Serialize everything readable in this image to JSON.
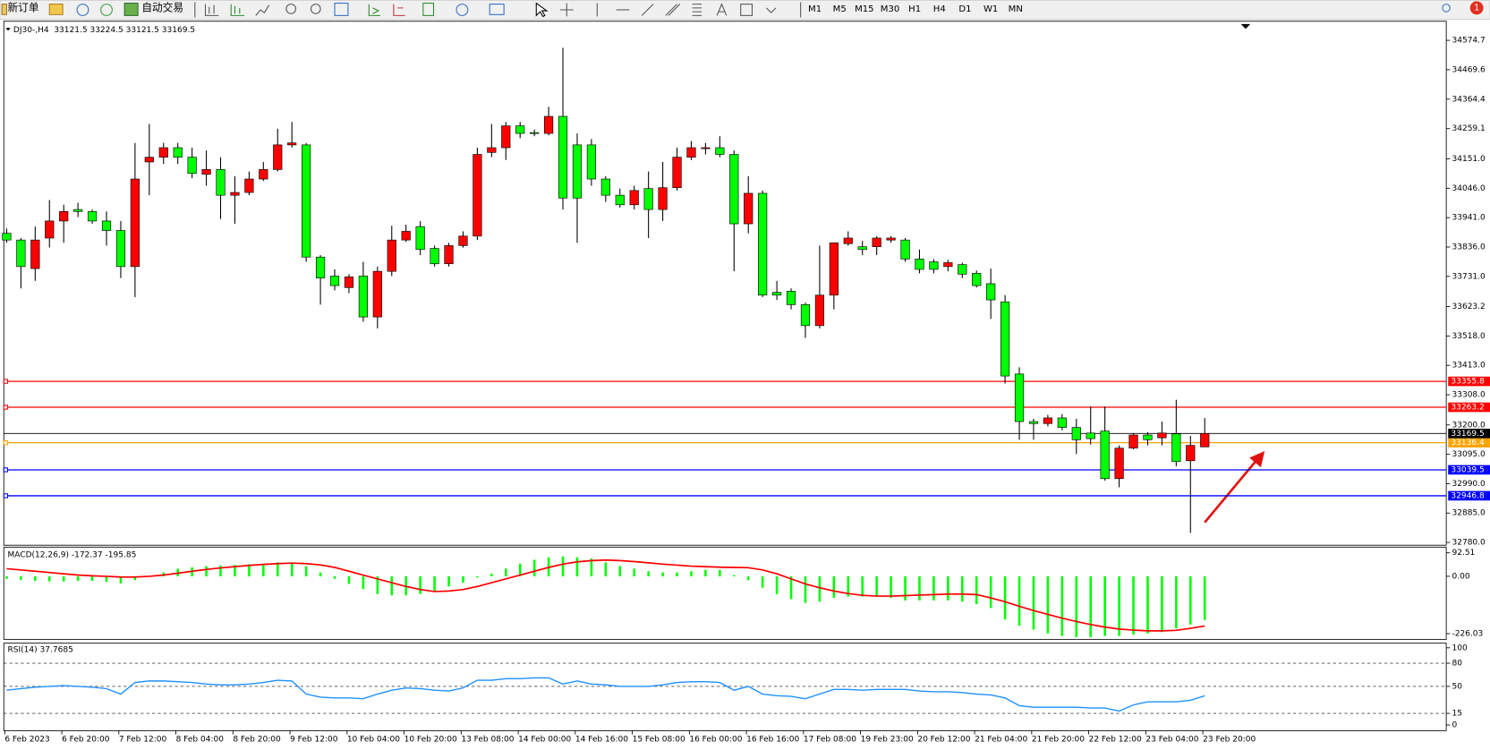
{
  "toolbar": {
    "new_order": "新订单",
    "auto_trading": "自动交易",
    "timeframes": [
      "M1",
      "M5",
      "M15",
      "M30",
      "H1",
      "H4",
      "D1",
      "W1",
      "MN"
    ],
    "notification": "1"
  },
  "chart_data": [
    {
      "type": "candlestick",
      "title": "DJ30-,H4  33121.5 33224.5 33121.5 33169.5",
      "categories": [
        "6 Feb 2023",
        null,
        null,
        null,
        "6 Feb 20:00",
        null,
        null,
        null,
        "7 Feb 12:00",
        null,
        null,
        null,
        "8 Feb 04:00",
        null,
        null,
        null,
        "8 Feb 20:00",
        null,
        null,
        null,
        "9 Feb 12:00",
        null,
        null,
        null,
        "10 Feb 04:00",
        null,
        null,
        null,
        "10 Feb 20:00",
        null,
        null,
        null,
        "13 Feb 08:00",
        null,
        null,
        null,
        "14 Feb 00:00",
        null,
        null,
        null,
        "14 Feb 16:00",
        null,
        null,
        null,
        "15 Feb 08:00",
        null,
        null,
        null,
        "16 Feb 00:00",
        null,
        null,
        null,
        "16 Feb 16:00",
        null,
        null,
        null,
        "17 Feb 08:00",
        null,
        null,
        null,
        "19 Feb 23:00",
        null,
        null,
        null,
        "20 Feb 12:00",
        null,
        null,
        null,
        "21 Feb 04:00",
        null,
        null,
        null,
        "21 Feb 20:00",
        null,
        null,
        null,
        "22 Feb 12:00",
        null,
        null,
        null,
        "23 Feb 04:00",
        null,
        null,
        null,
        "23 Feb 20:00"
      ],
      "open": [
        33885,
        33861,
        33759,
        33868,
        33929,
        33970,
        33963,
        33929,
        33895,
        33766,
        34140,
        34157,
        34191,
        34157,
        34096,
        34113,
        34021,
        34031,
        34079,
        34113,
        34201,
        34201,
        33800,
        33732,
        33691,
        33732,
        33586,
        33749,
        33861,
        33909,
        33831,
        33776,
        33841,
        33875,
        34174,
        34191,
        34269,
        34245,
        34242,
        34303,
        34201,
        34201,
        34079,
        34021,
        33987,
        34045,
        33970,
        34048,
        34157,
        34188,
        34191,
        34167,
        33919,
        34028,
        33674,
        33678,
        33630,
        33555,
        33664,
        33848,
        33837,
        33837,
        33861,
        33861,
        33793,
        33783,
        33766,
        33773,
        33742,
        33705,
        33640,
        33382,
        33212,
        33205,
        33225,
        33191,
        33171,
        33178,
        33008,
        33117,
        33164,
        33154,
        33168,
        33072,
        33121.5
      ],
      "high": [
        33902,
        33868,
        33909,
        34004,
        33987,
        33994,
        33970,
        33963,
        33929,
        34208,
        34276,
        34208,
        34208,
        34191,
        34181,
        34157,
        34089,
        34106,
        34140,
        34259,
        34283,
        34208,
        33807,
        33756,
        33739,
        33783,
        33766,
        33912,
        33916,
        33929,
        33841,
        33851,
        33892,
        34191,
        34276,
        34283,
        34283,
        34256,
        34337,
        34548,
        34242,
        34222,
        34089,
        34045,
        34055,
        34106,
        34140,
        34191,
        34215,
        34208,
        34232,
        34181,
        34089,
        34038,
        33715,
        33688,
        33637,
        33841,
        33851,
        33892,
        33858,
        33875,
        33875,
        33868,
        33827,
        33793,
        33790,
        33780,
        33752,
        33759,
        33664,
        33406,
        33222,
        33236,
        33239,
        33222,
        33266,
        33266,
        33127,
        33171,
        33174,
        33212,
        33290,
        33161,
        33224.5
      ],
      "low": [
        33851,
        33688,
        33715,
        33834,
        33851,
        33943,
        33919,
        33841,
        33725,
        33657,
        34021,
        34133,
        34133,
        34082,
        34055,
        33936,
        33919,
        34021,
        34072,
        34106,
        34191,
        33783,
        33630,
        33681,
        33671,
        33569,
        33545,
        33732,
        33854,
        33807,
        33766,
        33766,
        33834,
        33861,
        34157,
        34147,
        34225,
        34232,
        34235,
        33970,
        33851,
        34055,
        33997,
        33977,
        33970,
        33868,
        33929,
        34038,
        34147,
        34167,
        34157,
        33749,
        33885,
        33657,
        33647,
        33613,
        33511,
        33545,
        33613,
        33841,
        33807,
        33807,
        33851,
        33783,
        33742,
        33742,
        33749,
        33725,
        33691,
        33579,
        33348,
        33147,
        33147,
        33195,
        33181,
        33096,
        33130,
        33001,
        32977,
        33113,
        33127,
        33127,
        33052,
        32814,
        33121.5
      ],
      "close": [
        33861,
        33766,
        33861,
        33929,
        33963,
        33963,
        33929,
        33895,
        33766,
        34079,
        34157,
        34191,
        34157,
        34099,
        34113,
        34021,
        34031,
        34079,
        34113,
        34201,
        34208,
        33800,
        33725,
        33698,
        33729,
        33586,
        33749,
        33861,
        33892,
        33827,
        33776,
        33841,
        33875,
        34167,
        34191,
        34269,
        34242,
        34242,
        34303,
        34011,
        34011,
        34079,
        34021,
        33987,
        34038,
        33970,
        34048,
        34157,
        34191,
        34191,
        34167,
        33919,
        34028,
        33664,
        33664,
        33630,
        33555,
        33664,
        33851,
        33868,
        33827,
        33868,
        33868,
        33793,
        33756,
        33756,
        33780,
        33739,
        33698,
        33647,
        33375,
        33212,
        33205,
        33225,
        33191,
        33147,
        33151,
        33008,
        33117,
        33164,
        33147,
        33171,
        33069,
        33127,
        33169.5
      ],
      "up_color": "#ff0000",
      "down_color": "#00ff00",
      "ylim": [
        32770,
        34643
      ],
      "yticks": [
        34574.7,
        34469.6,
        34364.4,
        34259.1,
        {
          "value": 34151,
          "label": "34151.0"
        },
        {
          "value": 34046,
          "label": "34046.0"
        },
        {
          "value": 33941,
          "label": "33941.0"
        },
        {
          "value": 33836,
          "label": "33836.0"
        },
        {
          "value": 33731,
          "label": "33731.0"
        },
        33623.2,
        {
          "value": 33518,
          "label": "33518.0"
        },
        {
          "value": 33413,
          "label": "33413.0"
        },
        {
          "value": 33308,
          "label": "33308.0"
        },
        {
          "value": 33200,
          "label": "33200.0"
        },
        {
          "value": 33095,
          "label": "33095.0"
        },
        {
          "value": 32990,
          "label": "32990.0"
        },
        {
          "value": 32885,
          "label": "32885.0"
        },
        {
          "value": 32780,
          "label": "32780.0"
        }
      ],
      "levels": [
        {
          "value": 33355.8,
          "color": "#ff0000"
        },
        {
          "value": 33263.2,
          "color": "#ff0000"
        },
        {
          "value": 33136.4,
          "color": "#ffa500"
        },
        {
          "value": 33039.5,
          "color": "#0000ff"
        },
        {
          "value": 32946.8,
          "color": "#0000ff"
        }
      ],
      "current_price": {
        "value": 33169.5,
        "color": "#000000"
      }
    },
    {
      "type": "macd",
      "title": "MACD(12,26,9) -172.37 -195.85",
      "histogram": {
        "color": "#00ff00",
        "values": [
          -10,
          -14,
          -18,
          -20,
          -20,
          -18,
          -18,
          -22,
          -28,
          -15,
          0,
          15,
          30,
          35,
          40,
          42,
          45,
          48,
          50,
          55,
          55,
          40,
          15,
          -10,
          -30,
          -50,
          -70,
          -75,
          -75,
          -70,
          -60,
          -40,
          -25,
          -5,
          10,
          30,
          50,
          65,
          75,
          78,
          75,
          70,
          55,
          40,
          30,
          20,
          15,
          15,
          20,
          25,
          25,
          5,
          -15,
          -45,
          -70,
          -90,
          -105,
          -100,
          -85,
          -80,
          -80,
          -80,
          -85,
          -95,
          -95,
          -95,
          -95,
          -100,
          -110,
          -125,
          -170,
          -195,
          -210,
          -225,
          -235,
          -240,
          -240,
          -235,
          -235,
          -230,
          -225,
          -220,
          -205,
          -190,
          -172.37
        ]
      },
      "signal": {
        "color": "#ff0000",
        "values": [
          30,
          25,
          20,
          15,
          10,
          5,
          2,
          0,
          -3,
          -3,
          0,
          5,
          12,
          20,
          27,
          33,
          38,
          43,
          47,
          50,
          52,
          50,
          45,
          35,
          20,
          5,
          -10,
          -25,
          -40,
          -52,
          -60,
          -58,
          -52,
          -40,
          -25,
          -10,
          5,
          20,
          35,
          48,
          57,
          62,
          64,
          62,
          58,
          53,
          48,
          44,
          40,
          38,
          36,
          35,
          34,
          25,
          10,
          -10,
          -30,
          -45,
          -58,
          -68,
          -75,
          -78,
          -78,
          -76,
          -74,
          -72,
          -70,
          -70,
          -72,
          -85,
          -100,
          -118,
          -135,
          -150,
          -165,
          -178,
          -190,
          -200,
          -208,
          -212,
          -215,
          -215,
          -213,
          -205,
          -195.85
        ]
      },
      "ylim": [
        -248.5,
        115
      ],
      "yticks": [
        92.51,
        {
          "value": 0,
          "label": "0.00"
        },
        -226.03
      ]
    },
    {
      "type": "line",
      "title": "RSI(14) 37.7685",
      "color": "#1e90ff",
      "values": [
        45,
        47,
        49,
        50,
        51,
        50,
        49,
        47,
        40,
        55,
        57,
        57,
        56,
        55,
        53,
        52,
        52,
        53,
        55,
        58,
        57,
        40,
        36,
        35,
        35,
        34,
        40,
        45,
        48,
        47,
        45,
        44,
        48,
        58,
        58,
        60,
        60,
        61,
        61,
        53,
        57,
        53,
        52,
        50,
        50,
        50,
        52,
        55,
        56,
        56,
        55,
        45,
        50,
        40,
        38,
        37,
        34,
        40,
        46,
        46,
        45,
        46,
        46,
        46,
        44,
        43,
        43,
        42,
        40,
        39,
        35,
        25,
        23,
        23,
        23,
        23,
        22,
        22,
        18,
        26,
        30,
        30,
        30,
        32,
        37.7685
      ],
      "ylim": [
        -7.4,
        106
      ],
      "yticks": [
        100,
        80,
        50,
        15,
        0
      ],
      "levels": [
        80,
        50,
        15
      ]
    }
  ]
}
